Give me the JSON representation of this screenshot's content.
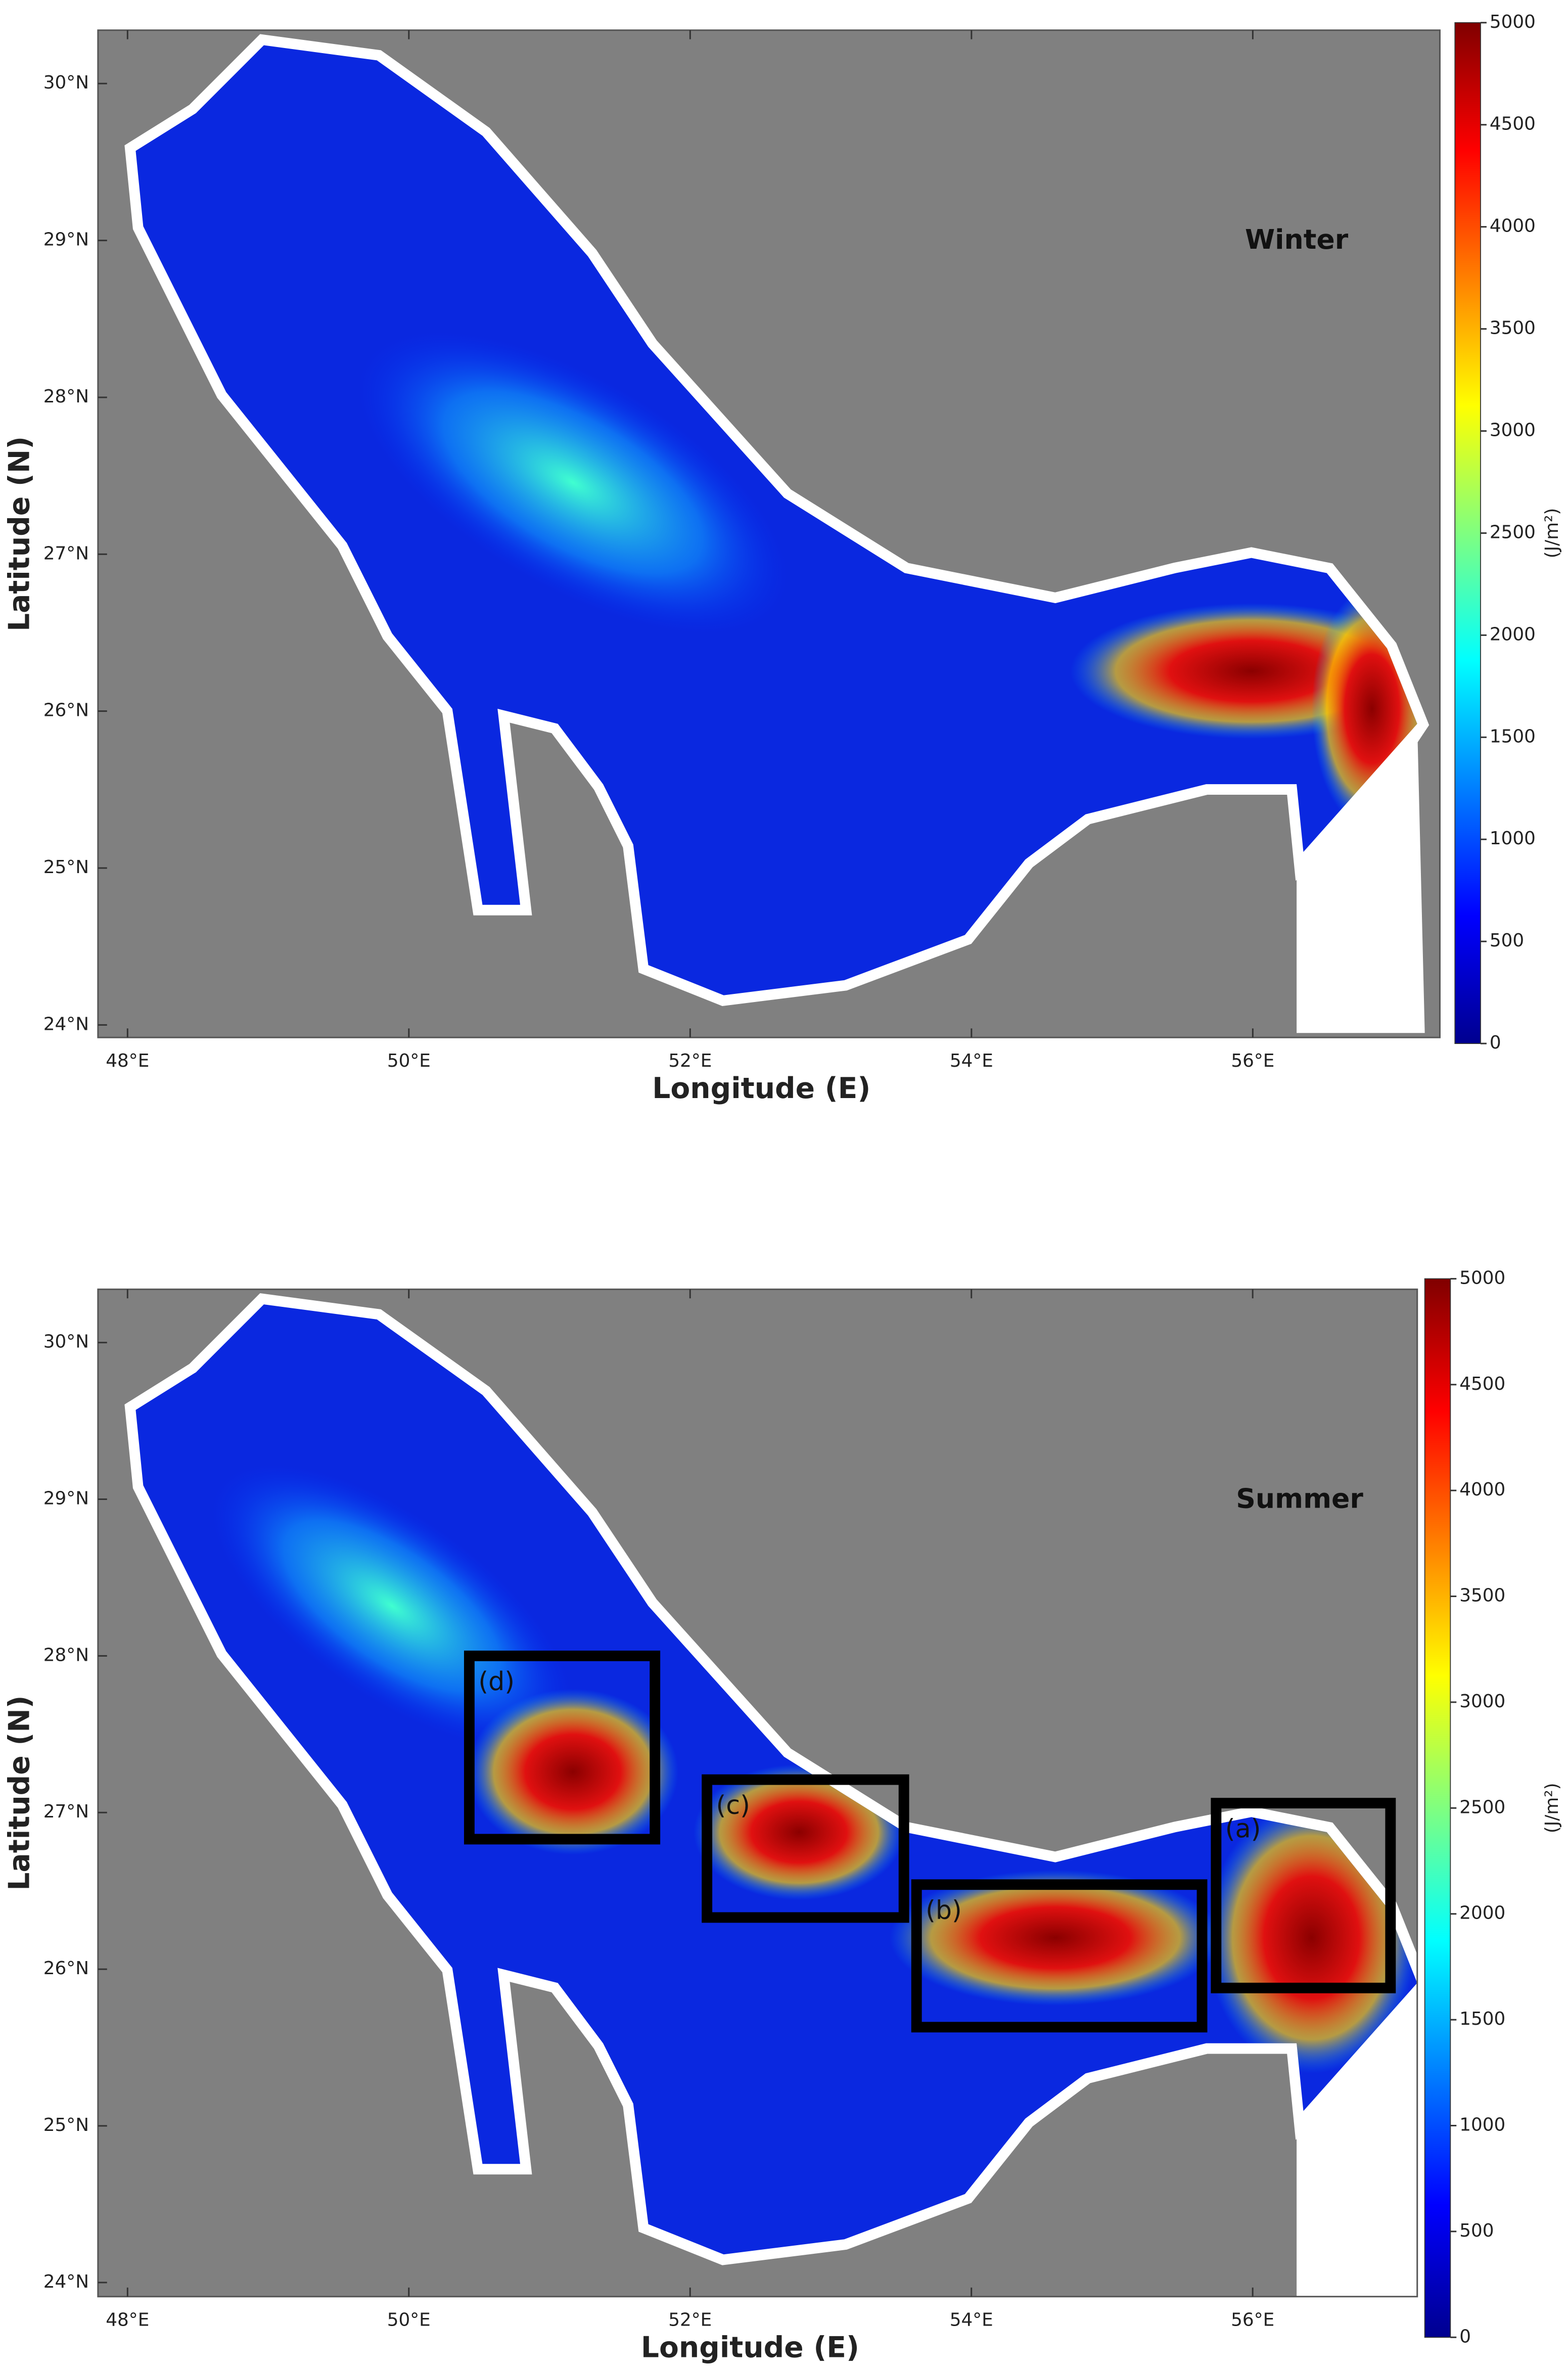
{
  "chart_data": [
    {
      "type": "map",
      "annotation": "Winter",
      "xlabel": "Longitude (E)",
      "ylabel": "Latitude (N)",
      "xlim": [
        47.79,
        57.33
      ],
      "ylim": [
        23.92,
        30.34
      ],
      "xticks": [
        {
          "value": 48,
          "label": "48°E"
        },
        {
          "value": 50,
          "label": "50°E"
        },
        {
          "value": 52,
          "label": "52°E"
        },
        {
          "value": 54,
          "label": "54°E"
        },
        {
          "value": 56,
          "label": "56°E"
        }
      ],
      "yticks": [
        {
          "value": 24,
          "label": "24°N"
        },
        {
          "value": 25,
          "label": "25°N"
        },
        {
          "value": 26,
          "label": "26°N"
        },
        {
          "value": 27,
          "label": "27°N"
        },
        {
          "value": 28,
          "label": "28°N"
        },
        {
          "value": 29,
          "label": "29°N"
        },
        {
          "value": 30,
          "label": "30°N"
        }
      ],
      "colorbar": {
        "label": "(J/m²)",
        "colormap": "jet",
        "lim": [
          0,
          5000
        ],
        "ticks": [
          0,
          500,
          1000,
          1500,
          2000,
          2500,
          3000,
          3500,
          4000,
          4500,
          5000
        ]
      }
    },
    {
      "type": "map",
      "annotation": "Summer",
      "xlabel": "Longitude (E)",
      "ylabel": "Latitude (N)",
      "xlim": [
        47.79,
        57.17
      ],
      "ylim": [
        23.91,
        30.34
      ],
      "xticks": [
        {
          "value": 48,
          "label": "48°E"
        },
        {
          "value": 50,
          "label": "50°E"
        },
        {
          "value": 52,
          "label": "52°E"
        },
        {
          "value": 54,
          "label": "54°E"
        },
        {
          "value": 56,
          "label": "56°E"
        }
      ],
      "yticks": [
        {
          "value": 24,
          "label": "24°N"
        },
        {
          "value": 25,
          "label": "25°N"
        },
        {
          "value": 26,
          "label": "26°N"
        },
        {
          "value": 27,
          "label": "27°N"
        },
        {
          "value": 28,
          "label": "28°N"
        },
        {
          "value": 29,
          "label": "29°N"
        },
        {
          "value": 30,
          "label": "30°N"
        }
      ],
      "colorbar": {
        "label": "(J/m²)",
        "colormap": "jet",
        "lim": [
          0,
          5000
        ],
        "ticks": [
          0,
          500,
          1000,
          1500,
          2000,
          2500,
          3000,
          3500,
          4000,
          4500,
          5000
        ]
      },
      "regions": [
        {
          "label": "(a)",
          "lon": [
            55.74,
            56.98
          ],
          "lat": [
            25.88,
            27.06
          ]
        },
        {
          "label": "(b)",
          "lon": [
            53.61,
            55.64
          ],
          "lat": [
            25.63,
            26.54
          ]
        },
        {
          "label": "(c)",
          "lon": [
            52.12,
            53.52
          ],
          "lat": [
            26.33,
            27.21
          ]
        },
        {
          "label": "(d)",
          "lon": [
            50.43,
            51.75
          ],
          "lat": [
            26.83,
            28.0
          ]
        }
      ]
    }
  ]
}
